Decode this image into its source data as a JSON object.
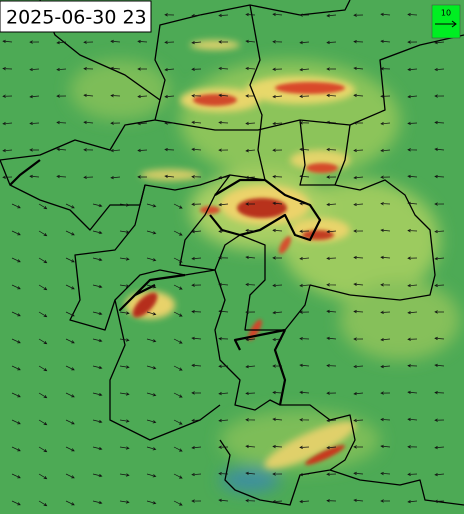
{
  "timestamp": "2025-06-30 23",
  "legend": {
    "label": "10"
  }
}
